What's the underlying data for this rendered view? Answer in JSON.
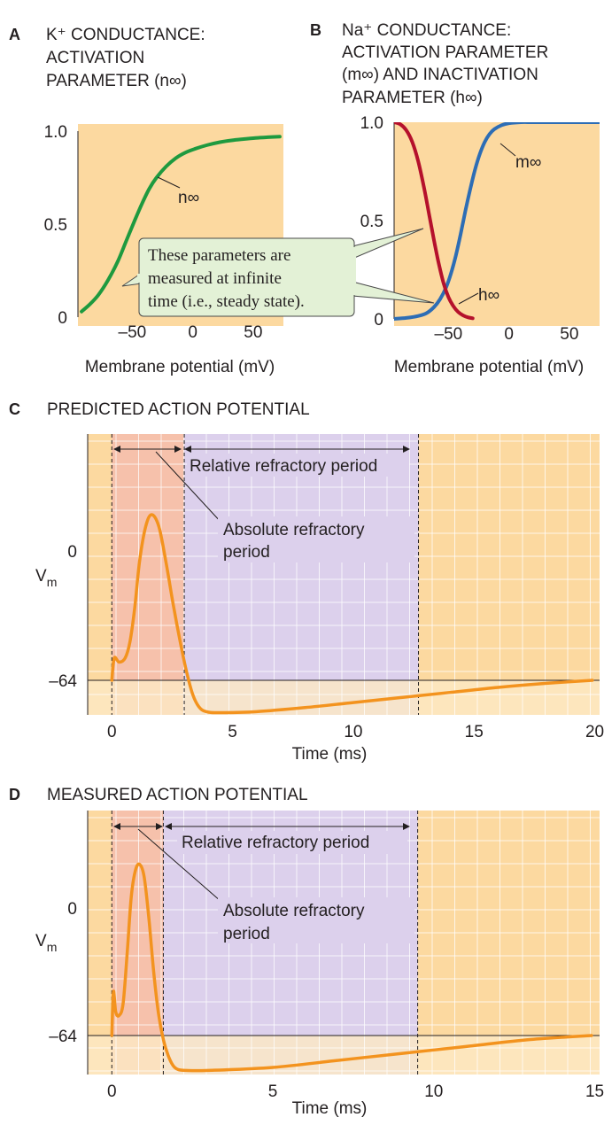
{
  "colors": {
    "panel_bg": "#fcd9a0",
    "grid": "#ffffff",
    "k_curve": "#1e9a3f",
    "na_m_curve": "#2d6db5",
    "na_h_curve": "#b5112c",
    "ap_curve": "#f3931e",
    "absolute_band": "#f6c1ab",
    "relative_band": "#dcd0ec",
    "rest_band": "#fde8c4",
    "callout_fill": "#e3f1d6",
    "callout_stroke": "#4a4a4a"
  },
  "panelA": {
    "letter": "A",
    "title_lines": [
      "K⁺ CONDUCTANCE:",
      "ACTIVATION",
      "PARAMETER (n∞)"
    ],
    "curve_label": "n∞"
  },
  "panelB": {
    "letter": "B",
    "title_lines": [
      "Na⁺ CONDUCTANCE:",
      "ACTIVATION PARAMETER",
      "(m∞) AND INACTIVATION",
      "PARAMETER (h∞)"
    ],
    "m_label": "m∞",
    "h_label": "h∞"
  },
  "callout": {
    "lines": [
      "These parameters are",
      "measured at infinite",
      "time (i.e., steady state)."
    ]
  },
  "panelC": {
    "letter": "C",
    "title": "PREDICTED ACTION POTENTIAL",
    "relative_label": "Relative refractory period",
    "absolute_label_lines": [
      "Absolute refractory",
      "period"
    ]
  },
  "panelD": {
    "letter": "D",
    "title": "MEASURED ACTION POTENTIAL",
    "relative_label": "Relative refractory period",
    "absolute_label_lines": [
      "Absolute refractory",
      "period"
    ]
  },
  "chart_data": [
    {
      "id": "A",
      "type": "line",
      "xlabel": "Membrane potential (mV)",
      "ylabel": "",
      "xlim": [
        -95,
        75
      ],
      "ylim": [
        0,
        1
      ],
      "xticks": [
        -50,
        0,
        50
      ],
      "xtick_labels": [
        "–50",
        "0",
        "50"
      ],
      "yticks": [
        0,
        0.5,
        1
      ],
      "ytick_labels": [
        "0",
        "0.5",
        "1.0"
      ],
      "grid": false,
      "series": [
        {
          "name": "n∞",
          "x": [
            -92,
            -85,
            -78,
            -70,
            -62,
            -55,
            -48,
            -42,
            -36,
            -30,
            -22,
            -14,
            -6,
            2,
            12,
            22,
            32,
            42,
            52,
            62,
            72
          ],
          "y": [
            0.03,
            0.07,
            0.12,
            0.2,
            0.3,
            0.41,
            0.52,
            0.61,
            0.69,
            0.75,
            0.81,
            0.855,
            0.885,
            0.905,
            0.925,
            0.94,
            0.95,
            0.957,
            0.963,
            0.967,
            0.97
          ]
        }
      ]
    },
    {
      "id": "B",
      "type": "line",
      "xlabel": "Membrane potential (mV)",
      "ylabel": "",
      "xlim": [
        -95,
        75
      ],
      "ylim": [
        0,
        1
      ],
      "xticks": [
        -50,
        0,
        50
      ],
      "xtick_labels": [
        "–50",
        "0",
        "50"
      ],
      "yticks": [
        0,
        0.5,
        1
      ],
      "ytick_labels": [
        "0",
        "0.5",
        "1.0"
      ],
      "grid": false,
      "series": [
        {
          "name": "m∞",
          "x": [
            -95,
            -85,
            -75,
            -68,
            -62,
            -57,
            -52,
            -48,
            -44,
            -40,
            -36,
            -32,
            -28,
            -24,
            -20,
            -16,
            -12,
            -6,
            0,
            10,
            20,
            40,
            60,
            75
          ],
          "y": [
            0.0,
            0.005,
            0.015,
            0.03,
            0.06,
            0.1,
            0.16,
            0.23,
            0.32,
            0.43,
            0.55,
            0.66,
            0.76,
            0.84,
            0.9,
            0.94,
            0.965,
            0.985,
            0.995,
            1.0,
            1.0,
            1.0,
            1.0,
            1.0
          ]
        },
        {
          "name": "h∞",
          "x": [
            -95,
            -90,
            -85,
            -80,
            -75,
            -70,
            -66,
            -62,
            -58,
            -54,
            -50,
            -46,
            -42,
            -38,
            -34,
            -30
          ],
          "y": [
            1.0,
            0.99,
            0.96,
            0.9,
            0.8,
            0.66,
            0.53,
            0.4,
            0.28,
            0.18,
            0.11,
            0.065,
            0.035,
            0.018,
            0.008,
            0.003
          ]
        }
      ]
    },
    {
      "id": "C",
      "type": "line",
      "xlabel": "Time (ms)",
      "ylabel": "Vm",
      "xlim": [
        -1,
        20.2
      ],
      "xticks": [
        0,
        5,
        10,
        15,
        20
      ],
      "yticks": [
        -64,
        0
      ],
      "ytick_labels": [
        "–64",
        "0"
      ],
      "grid": true,
      "bands": {
        "absolute_ms": [
          0,
          3
        ],
        "relative_ms": [
          3,
          12.7
        ],
        "rest_until_mv": -64
      },
      "series": [
        {
          "name": "",
          "x": [
            0,
            0.1,
            0.3,
            0.55,
            0.75,
            0.95,
            1.15,
            1.4,
            1.65,
            1.95,
            2.25,
            2.55,
            2.85,
            3.1,
            3.35,
            3.6,
            3.9,
            4.5,
            6,
            8,
            10,
            12,
            14,
            16,
            18,
            19.9
          ],
          "y": [
            -64,
            -53,
            -55,
            -53,
            -45,
            -28,
            -5,
            12,
            18,
            12,
            -6,
            -27,
            -46,
            -60,
            -71,
            -77,
            -79.5,
            -80,
            -79.5,
            -77.5,
            -75,
            -72.5,
            -70,
            -67.5,
            -65.5,
            -64
          ]
        }
      ]
    },
    {
      "id": "D",
      "type": "line",
      "xlabel": "Time (ms)",
      "ylabel": "Vm",
      "xlim": [
        -0.75,
        15.15
      ],
      "xticks": [
        0,
        5,
        10,
        15
      ],
      "yticks": [
        -64,
        0
      ],
      "ytick_labels": [
        "–64",
        "0"
      ],
      "grid": true,
      "bands": {
        "absolute_ms": [
          0,
          1.6
        ],
        "relative_ms": [
          1.6,
          9.5
        ],
        "rest_until_mv": -64
      },
      "series": [
        {
          "name": "",
          "x": [
            0,
            0.05,
            0.12,
            0.22,
            0.35,
            0.48,
            0.6,
            0.72,
            0.85,
            1.0,
            1.15,
            1.3,
            1.45,
            1.6,
            1.75,
            1.9,
            2.05,
            2.3,
            3,
            5,
            7,
            9,
            11,
            13,
            14.9
          ],
          "y": [
            -64,
            -42,
            -52,
            -54,
            -48,
            -22,
            5,
            18,
            22,
            16,
            -5,
            -32,
            -53,
            -66,
            -74,
            -79,
            -81,
            -81.5,
            -81.5,
            -80,
            -76.5,
            -73,
            -69.5,
            -66,
            -64
          ]
        }
      ]
    }
  ]
}
